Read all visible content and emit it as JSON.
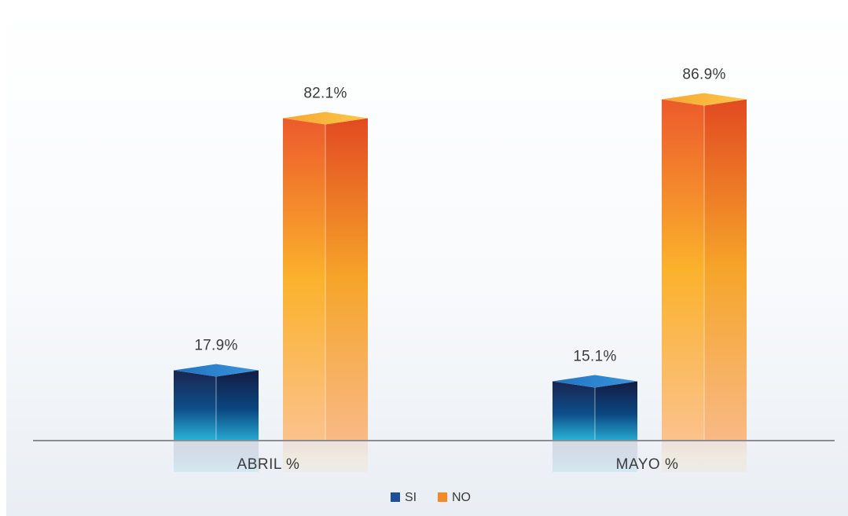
{
  "chart_data": {
    "type": "bar",
    "categories": [
      "ABRIL %",
      "MAYO %"
    ],
    "series": [
      {
        "name": "SI",
        "values": [
          17.9,
          15.1
        ],
        "labels": [
          "17.9%",
          "15.1%"
        ]
      },
      {
        "name": "NO",
        "values": [
          82.1,
          86.9
        ],
        "labels": [
          "82.1%",
          "86.9%"
        ]
      }
    ],
    "ylim": [
      0,
      100
    ],
    "grid": false,
    "legend_position": "bottom",
    "colors": {
      "SI": "#1f4e9c",
      "NO": "#f58a24"
    }
  }
}
